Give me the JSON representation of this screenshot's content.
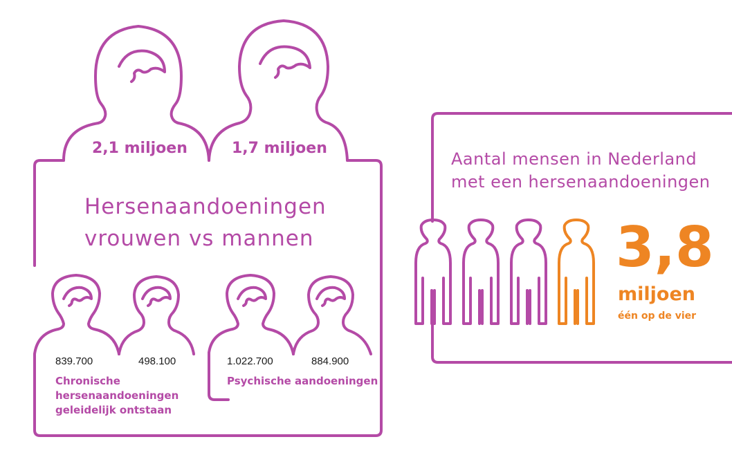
{
  "colors": {
    "primary": "#b44aa6",
    "accent": "#ee8523",
    "text": "#1a1a1a"
  },
  "top": {
    "women_count": "2,1 miljoen",
    "men_count": "1,7 miljoen"
  },
  "title": {
    "line1": "Hersenaandoeningen",
    "line2": "vrouwen vs mannen"
  },
  "chronic": {
    "women_count": "839.700",
    "men_count": "498.100",
    "label_lines": [
      "Chronische",
      "hersenaandoeningen",
      "geleidelijk ontstaan"
    ]
  },
  "psychic": {
    "women_count": "1.022.700",
    "men_count": "884.900",
    "label": "Psychische aandoeningen"
  },
  "total": {
    "title_line1": "Aantal mensen in Nederland",
    "title_line2": "met een hersenaandoeningen",
    "value": "3,8",
    "unit": "miljoen",
    "sub": "één op de vier",
    "people_icons": [
      {
        "color": "#b44aa6"
      },
      {
        "color": "#b44aa6"
      },
      {
        "color": "#b44aa6"
      },
      {
        "color": "#ee8523"
      }
    ]
  }
}
